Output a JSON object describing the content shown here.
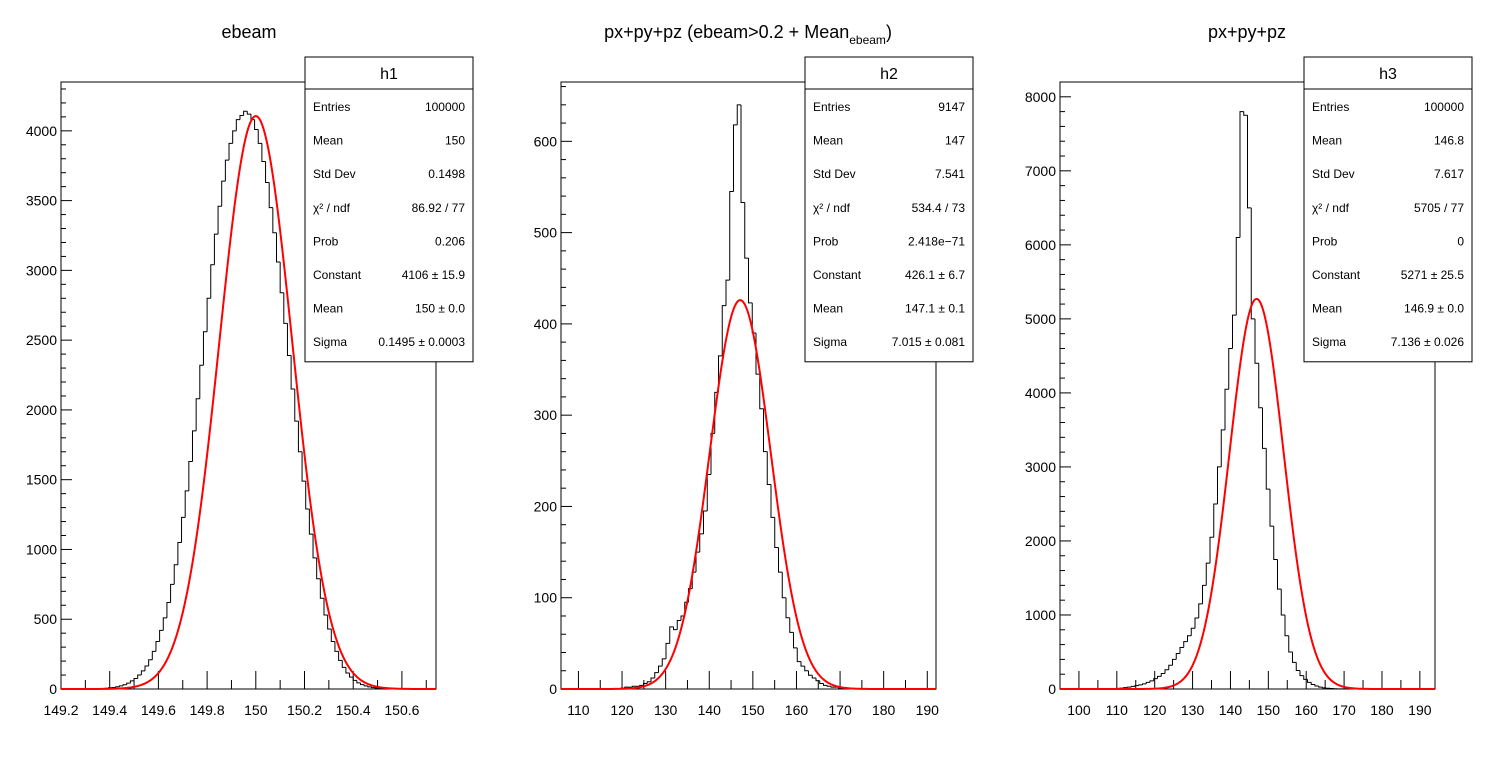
{
  "chart_data": [
    {
      "type": "histogram",
      "title": "ebeam",
      "title_sub": "",
      "xlim": [
        149.2,
        150.74
      ],
      "ylim": [
        0,
        4350
      ],
      "xticks": [
        149.2,
        149.4,
        149.6,
        149.8,
        150,
        150.2,
        150.4,
        150.6
      ],
      "xtick_labels": [
        "149.2",
        "149.4",
        "149.6",
        "149.8",
        "150",
        "150.2",
        "150.4",
        "150.6"
      ],
      "yticks": [
        0,
        500,
        1000,
        1500,
        2000,
        2500,
        3000,
        3500,
        4000
      ],
      "ytick_labels": [
        "0",
        "500",
        "1000",
        "1500",
        "2000",
        "2500",
        "3000",
        "3500",
        "4000"
      ],
      "histogram_line_color": "#000000",
      "fit_color": "#ff0000",
      "fit": {
        "constant": 4106,
        "mean": 150,
        "sigma": 0.1495
      },
      "stats_box": {
        "name": "h1",
        "rows": [
          {
            "label": "Entries",
            "value": "100000"
          },
          {
            "label": "Mean",
            "value": "150"
          },
          {
            "label": "Std Dev",
            "value": "0.1498"
          },
          {
            "label": "χ² / ndf",
            "value": "86.92 / 77"
          },
          {
            "label": "Prob",
            "value": "0.206"
          },
          {
            "label": "Constant",
            "value": "4106 ± 15.9"
          },
          {
            "label": "Mean",
            "value": "150 ± 0.0"
          },
          {
            "label": "Sigma",
            "value": "0.1495 ± 0.0003"
          }
        ]
      },
      "bin_width": 0.015,
      "hist_x": [
        149.2,
        149.215,
        149.23,
        149.245,
        149.26,
        149.275,
        149.29,
        149.305,
        149.32,
        149.335,
        149.35,
        149.365,
        149.38,
        149.395,
        149.41,
        149.425,
        149.44,
        149.455,
        149.47,
        149.485,
        149.5,
        149.515,
        149.53,
        149.545,
        149.56,
        149.575,
        149.59,
        149.605,
        149.62,
        149.635,
        149.65,
        149.665,
        149.68,
        149.695,
        149.71,
        149.725,
        149.74,
        149.755,
        149.77,
        149.785,
        149.8,
        149.815,
        149.83,
        149.845,
        149.86,
        149.875,
        149.89,
        149.905,
        149.92,
        149.935,
        149.95,
        149.965,
        149.98,
        149.995,
        150.01,
        150.025,
        150.04,
        150.055,
        150.07,
        150.085,
        150.1,
        150.115,
        150.13,
        150.145,
        150.16,
        150.175,
        150.19,
        150.205,
        150.22,
        150.235,
        150.25,
        150.265,
        150.28,
        150.295,
        150.31,
        150.325,
        150.34,
        150.355,
        150.37,
        150.385,
        150.4,
        150.415,
        150.43,
        150.445,
        150.46,
        150.475,
        150.49,
        150.505,
        150.52,
        150.535,
        150.55,
        150.565,
        150.58,
        150.595,
        150.61,
        150.625,
        150.64,
        150.655,
        150.67,
        150.685,
        150.7,
        150.715
      ],
      "hist_y": [
        0,
        0,
        0,
        0,
        0,
        0,
        1,
        1,
        1,
        2,
        3,
        3,
        5,
        9,
        11,
        16,
        22,
        30,
        42,
        58,
        75,
        100,
        130,
        165,
        210,
        270,
        340,
        420,
        510,
        620,
        750,
        890,
        1050,
        1230,
        1420,
        1630,
        1850,
        2080,
        2320,
        2560,
        2800,
        3040,
        3260,
        3460,
        3640,
        3790,
        3910,
        4000,
        4080,
        4110,
        4140,
        4120,
        4080,
        4010,
        3910,
        3780,
        3630,
        3450,
        3270,
        3060,
        2840,
        2620,
        2390,
        2150,
        1920,
        1700,
        1490,
        1290,
        1110,
        940,
        790,
        650,
        530,
        430,
        340,
        270,
        205,
        155,
        115,
        85,
        62,
        44,
        31,
        22,
        15,
        10,
        7,
        5,
        3,
        2,
        1,
        1,
        0,
        0,
        0,
        0,
        0,
        0,
        0,
        0,
        0,
        0
      ]
    },
    {
      "type": "histogram",
      "title": "px+py+pz (ebeam>0.2 + Mean",
      "title_sub": "ebeam",
      "title_tail": ")",
      "xlim": [
        106,
        192
      ],
      "ylim": [
        0,
        665
      ],
      "xticks": [
        110,
        120,
        130,
        140,
        150,
        160,
        170,
        180,
        190
      ],
      "xtick_labels": [
        "110",
        "120",
        "130",
        "140",
        "150",
        "160",
        "170",
        "180",
        "190"
      ],
      "yticks": [
        0,
        100,
        200,
        300,
        400,
        500,
        600
      ],
      "ytick_labels": [
        "0",
        "100",
        "200",
        "300",
        "400",
        "500",
        "600"
      ],
      "histogram_line_color": "#000000",
      "fit_color": "#ff0000",
      "fit": {
        "constant": 426.1,
        "mean": 147.1,
        "sigma": 7.015
      },
      "stats_box": {
        "name": "h2",
        "rows": [
          {
            "label": "Entries",
            "value": "9147"
          },
          {
            "label": "Mean",
            "value": "147"
          },
          {
            "label": "Std Dev",
            "value": "7.541"
          },
          {
            "label": "χ² / ndf",
            "value": "534.4 / 73"
          },
          {
            "label": "Prob",
            "value": "2.418e−71"
          },
          {
            "label": "Constant",
            "value": "426.1 ± 6.7"
          },
          {
            "label": "Mean",
            "value": "147.1 ± 0.1"
          },
          {
            "label": "Sigma",
            "value": "7.015 ± 0.081"
          }
        ]
      },
      "bin_width": 0.86,
      "hist_x": [
        106,
        106.86,
        107.72,
        108.58,
        109.44,
        110.3,
        111.16,
        112.02,
        112.88,
        113.74,
        114.6,
        115.46,
        116.32,
        117.18,
        118.04,
        118.9,
        119.76,
        120.62,
        121.48,
        122.34,
        123.2,
        124.06,
        124.92,
        125.78,
        126.64,
        127.5,
        128.36,
        129.22,
        130.08,
        130.94,
        131.8,
        132.66,
        133.52,
        134.38,
        135.24,
        136.1,
        136.96,
        137.82,
        138.68,
        139.54,
        140.4,
        141.26,
        142.12,
        142.98,
        143.84,
        144.7,
        145.56,
        146.42,
        147.28,
        148.14,
        149,
        149.86,
        150.72,
        151.58,
        152.44,
        153.3,
        154.16,
        155.02,
        155.88,
        156.74,
        157.6,
        158.46,
        159.32,
        160.18,
        161.04,
        161.9,
        162.76,
        163.62,
        164.48,
        165.34,
        166.2,
        167.06,
        167.92,
        168.78,
        169.64,
        170.5,
        171.36,
        172.22,
        173.08,
        173.94,
        174.8,
        175.66,
        176.52,
        177.38,
        178.24,
        179.1,
        179.96,
        180.82,
        181.68,
        182.54,
        183.4,
        184.26,
        185.12,
        185.98,
        186.84,
        187.7,
        188.56,
        189.42,
        190.28,
        191.14
      ],
      "hist_y": [
        0,
        0,
        0,
        0,
        0,
        0,
        0,
        0,
        0,
        0,
        0,
        0,
        0,
        0,
        0,
        0,
        1,
        2,
        2,
        3,
        3,
        4,
        6,
        8,
        12,
        18,
        25,
        33,
        50,
        68,
        65,
        75,
        80,
        95,
        110,
        128,
        150,
        170,
        195,
        235,
        280,
        325,
        365,
        420,
        448,
        545,
        618,
        640,
        533,
        472,
        423,
        390,
        345,
        307,
        260,
        224,
        188,
        155,
        128,
        100,
        78,
        62,
        45,
        30,
        25,
        20,
        15,
        12,
        9,
        6,
        4,
        3,
        2,
        2,
        1,
        1,
        0,
        0,
        0,
        0,
        0,
        0,
        0,
        0,
        0,
        0,
        0,
        0,
        0,
        0,
        0,
        0,
        0,
        0,
        0,
        0,
        0,
        0,
        0,
        0
      ]
    },
    {
      "type": "histogram",
      "title": "px+py+pz",
      "title_sub": "",
      "xlim": [
        95,
        194
      ],
      "ylim": [
        0,
        8200
      ],
      "xticks": [
        100,
        110,
        120,
        130,
        140,
        150,
        160,
        170,
        180,
        190
      ],
      "xtick_labels": [
        "100",
        "110",
        "120",
        "130",
        "140",
        "150",
        "160",
        "170",
        "180",
        "190"
      ],
      "yticks": [
        0,
        1000,
        2000,
        3000,
        4000,
        5000,
        6000,
        7000,
        8000
      ],
      "ytick_labels": [
        "0",
        "1000",
        "2000",
        "3000",
        "4000",
        "5000",
        "6000",
        "7000",
        "8000"
      ],
      "histogram_line_color": "#000000",
      "fit_color": "#ff0000",
      "fit": {
        "constant": 5271,
        "mean": 146.9,
        "sigma": 7.136
      },
      "stats_box": {
        "name": "h3",
        "rows": [
          {
            "label": "Entries",
            "value": "100000"
          },
          {
            "label": "Mean",
            "value": "146.8"
          },
          {
            "label": "Std Dev",
            "value": "7.617"
          },
          {
            "label": "χ² / ndf",
            "value": "5705 / 77"
          },
          {
            "label": "Prob",
            "value": "0"
          },
          {
            "label": "Constant",
            "value": "5271 ± 25.5"
          },
          {
            "label": "Mean",
            "value": "146.9 ± 0.0"
          },
          {
            "label": "Sigma",
            "value": "7.136 ± 0.026"
          }
        ]
      },
      "bin_width": 0.99,
      "hist_x": [
        95,
        95.99,
        96.98,
        97.97,
        98.96,
        99.95,
        100.94,
        101.93,
        102.92,
        103.91,
        104.9,
        105.89,
        106.88,
        107.87,
        108.86,
        109.85,
        110.84,
        111.83,
        112.82,
        113.81,
        114.8,
        115.79,
        116.78,
        117.77,
        118.76,
        119.75,
        120.74,
        121.73,
        122.72,
        123.71,
        124.7,
        125.69,
        126.68,
        127.67,
        128.66,
        129.65,
        130.64,
        131.63,
        132.62,
        133.61,
        134.6,
        135.59,
        136.58,
        137.57,
        138.56,
        139.55,
        140.54,
        141.53,
        142.52,
        143.51,
        144.5,
        145.49,
        146.48,
        147.47,
        148.46,
        149.45,
        150.44,
        151.43,
        152.42,
        153.41,
        154.4,
        155.39,
        156.38,
        157.37,
        158.36,
        159.35,
        160.34,
        161.33,
        162.32,
        163.31,
        164.3,
        165.29,
        166.28,
        167.27,
        168.26,
        169.25,
        170.24,
        171.23,
        172.22,
        173.21,
        174.2,
        175.19,
        176.18,
        177.17,
        178.16,
        179.15,
        180.14,
        181.13,
        182.12,
        183.11,
        184.1,
        185.09,
        186.08,
        187.07,
        188.06,
        189.05,
        190.04,
        191.03,
        192.02,
        193.01
      ],
      "hist_y": [
        0,
        0,
        0,
        0,
        0,
        0,
        0,
        0,
        0,
        0,
        0,
        1,
        2,
        3,
        5,
        8,
        12,
        18,
        25,
        35,
        45,
        55,
        70,
        90,
        110,
        140,
        170,
        210,
        260,
        320,
        400,
        480,
        560,
        640,
        720,
        820,
        960,
        1150,
        1400,
        1700,
        2050,
        2500,
        3000,
        3500,
        4050,
        4600,
        5050,
        6100,
        7800,
        7750,
        6500,
        5000,
        4400,
        3800,
        3250,
        2700,
        2200,
        1750,
        1350,
        1000,
        720,
        500,
        360,
        250,
        180,
        130,
        90,
        60,
        40,
        25,
        15,
        10,
        6,
        4,
        2,
        1,
        1,
        0,
        0,
        0,
        0,
        0,
        0,
        0,
        0,
        0,
        0,
        0,
        0,
        0,
        0,
        0,
        0,
        0,
        0,
        0,
        0,
        0,
        0,
        0
      ]
    }
  ]
}
